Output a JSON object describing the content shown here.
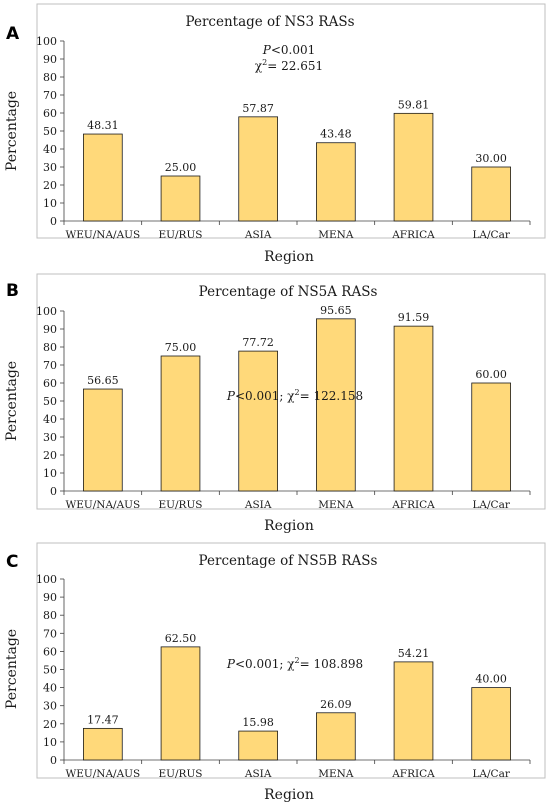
{
  "chart_data": [
    {
      "type": "bar",
      "panel": "A",
      "title": "Percentage of NS3 RASs",
      "xlabel": "Region",
      "ylabel": "Percentage",
      "ylim": [
        0,
        100
      ],
      "yticks": [
        0,
        10,
        20,
        30,
        40,
        50,
        60,
        70,
        80,
        90,
        100
      ],
      "categories": [
        "WEU/NA/AUS",
        "EU/RUS",
        "ASIA",
        "MENA",
        "AFRICA",
        "LA/Car"
      ],
      "values": [
        48.31,
        25.0,
        57.87,
        43.48,
        59.81,
        30.0
      ],
      "data_labels": [
        "48.31",
        "25.00",
        "57.87",
        "43.48",
        "59.81",
        "30.00"
      ],
      "annotation": {
        "lines": [
          {
            "italic": "P",
            "text": "<0.001"
          },
          {
            "text": "χ",
            "sup": "2",
            "rest": "= 22.651"
          }
        ]
      },
      "grid": false,
      "legend": "none",
      "bar_color": "#ffd97a"
    },
    {
      "type": "bar",
      "panel": "B",
      "title": "Percentage of NS5A RASs",
      "xlabel": "Region",
      "ylabel": "Percentage",
      "ylim": [
        0,
        100
      ],
      "yticks": [
        0,
        10,
        20,
        30,
        40,
        50,
        60,
        70,
        80,
        90,
        100
      ],
      "categories": [
        "WEU/NA/AUS",
        "EU/RUS",
        "ASIA",
        "MENA",
        "AFRICA",
        "LA/Car"
      ],
      "values": [
        56.65,
        75.0,
        77.72,
        95.65,
        91.59,
        60.0
      ],
      "data_labels": [
        "56.65",
        "75.00",
        "77.72",
        "95.65",
        "91.59",
        "60.00"
      ],
      "annotation": {
        "lines": [
          {
            "italic": "P",
            "text": "<0.001; χ",
            "sup": "2",
            "rest": "= 122.158"
          }
        ]
      },
      "grid": false,
      "legend": "none",
      "bar_color": "#ffd97a"
    },
    {
      "type": "bar",
      "panel": "C",
      "title": "Percentage of NS5B RASs",
      "xlabel": "Region",
      "ylabel": "Percentage",
      "ylim": [
        0,
        100
      ],
      "yticks": [
        0,
        10,
        20,
        30,
        40,
        50,
        60,
        70,
        80,
        90,
        100
      ],
      "categories": [
        "WEU/NA/AUS",
        "EU/RUS",
        "ASIA",
        "MENA",
        "AFRICA",
        "LA/Car"
      ],
      "values": [
        17.47,
        62.5,
        15.98,
        26.09,
        54.21,
        40.0
      ],
      "data_labels": [
        "17.47",
        "62.50",
        "15.98",
        "26.09",
        "54.21",
        "40.00"
      ],
      "annotation": {
        "lines": [
          {
            "italic": "P",
            "text": "<0.001; χ",
            "sup": "2",
            "rest": "= 108.898"
          }
        ]
      },
      "grid": false,
      "legend": "none",
      "bar_color": "#ffd97a"
    }
  ]
}
